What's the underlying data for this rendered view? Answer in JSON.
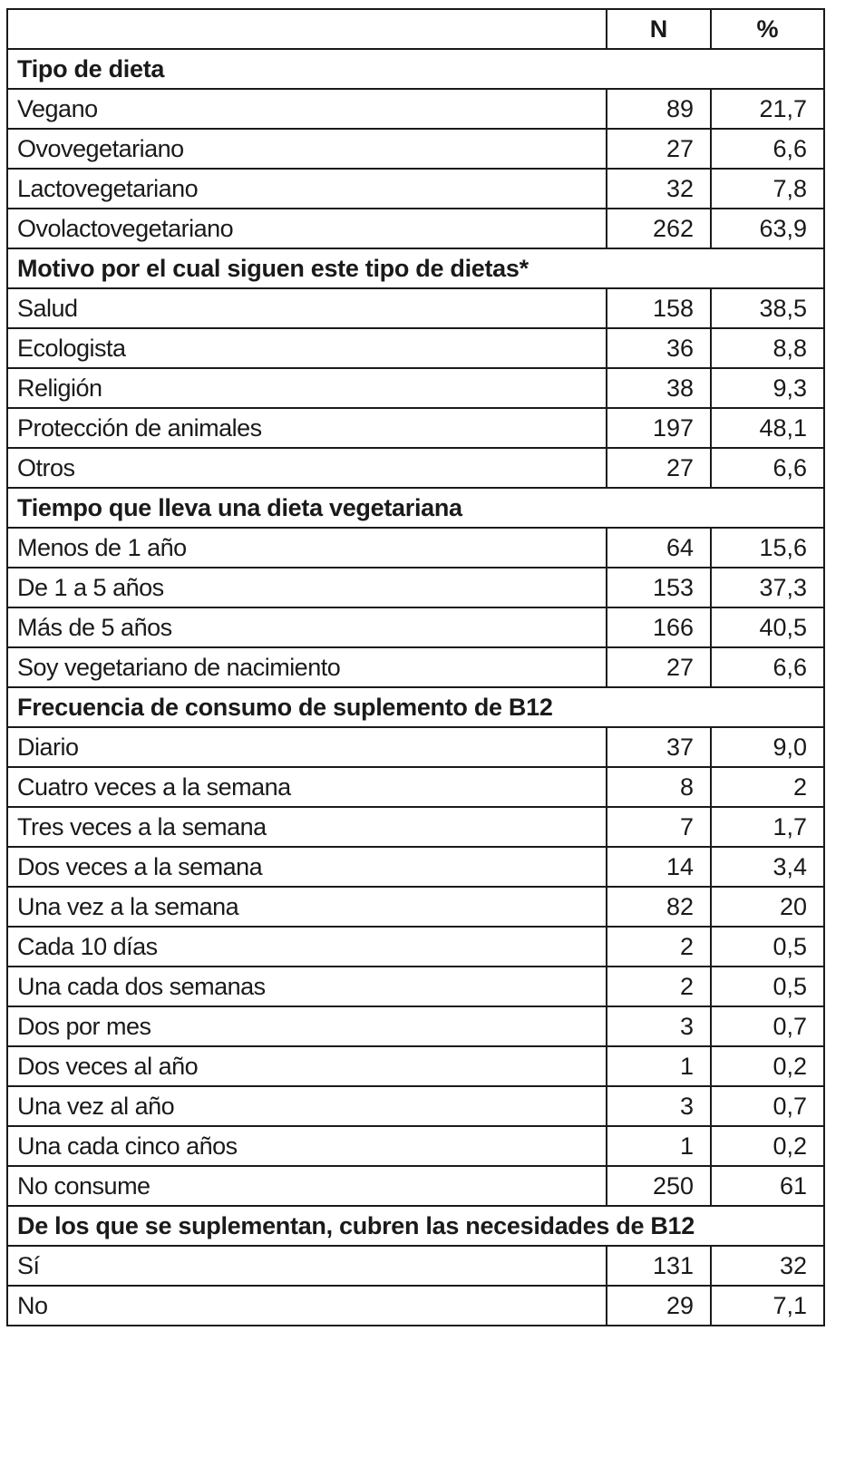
{
  "header": {
    "label": "",
    "n": "N",
    "pct": "%"
  },
  "sections": [
    {
      "title": "Tipo de dieta",
      "rows": [
        {
          "label": "Vegano",
          "n": "89",
          "pct": "21,7"
        },
        {
          "label": "Ovovegetariano",
          "n": "27",
          "pct": "6,6"
        },
        {
          "label": "Lactovegetariano",
          "n": "32",
          "pct": "7,8"
        },
        {
          "label": "Ovolactovegetariano",
          "n": "262",
          "pct": "63,9"
        }
      ]
    },
    {
      "title": "Motivo por el cual siguen este tipo de dietas*",
      "rows": [
        {
          "label": "Salud",
          "n": "158",
          "pct": "38,5"
        },
        {
          "label": "Ecologista",
          "n": "36",
          "pct": "8,8"
        },
        {
          "label": "Religión",
          "n": "38",
          "pct": "9,3"
        },
        {
          "label": "Protección de animales",
          "n": "197",
          "pct": "48,1"
        },
        {
          "label": "Otros",
          "n": "27",
          "pct": "6,6"
        }
      ]
    },
    {
      "title": "Tiempo que lleva una dieta vegetariana",
      "rows": [
        {
          "label": "Menos de 1 año",
          "n": "64",
          "pct": "15,6"
        },
        {
          "label": "De 1 a 5 años",
          "n": "153",
          "pct": "37,3"
        },
        {
          "label": "Más de 5 años",
          "n": "166",
          "pct": "40,5"
        },
        {
          "label": "Soy vegetariano de nacimiento",
          "n": "27",
          "pct": "6,6"
        }
      ]
    },
    {
      "title": "Frecuencia de consumo de suplemento de B12",
      "rows": [
        {
          "label": "Diario",
          "n": "37",
          "pct": "9,0"
        },
        {
          "label": "Cuatro veces a la semana",
          "n": "8",
          "pct": "2"
        },
        {
          "label": "Tres veces a la semana",
          "n": "7",
          "pct": "1,7"
        },
        {
          "label": "Dos veces a la semana",
          "n": "14",
          "pct": "3,4"
        },
        {
          "label": "Una vez a la semana",
          "n": "82",
          "pct": "20"
        },
        {
          "label": "Cada 10 días",
          "n": "2",
          "pct": "0,5"
        },
        {
          "label": "Una cada dos semanas",
          "n": "2",
          "pct": "0,5"
        },
        {
          "label": "Dos por mes",
          "n": "3",
          "pct": "0,7"
        },
        {
          "label": "Dos veces al año",
          "n": "1",
          "pct": "0,2"
        },
        {
          "label": "Una vez al año",
          "n": "3",
          "pct": "0,7"
        },
        {
          "label": "Una cada cinco años",
          "n": "1",
          "pct": "0,2"
        },
        {
          "label": "No consume",
          "n": "250",
          "pct": "61"
        }
      ]
    },
    {
      "title": "De los que se suplementan, cubren las necesidades de B12",
      "rows": [
        {
          "label": "Sí",
          "n": "131",
          "pct": "32"
        },
        {
          "label": "No",
          "n": "29",
          "pct": "7,1"
        }
      ]
    }
  ]
}
